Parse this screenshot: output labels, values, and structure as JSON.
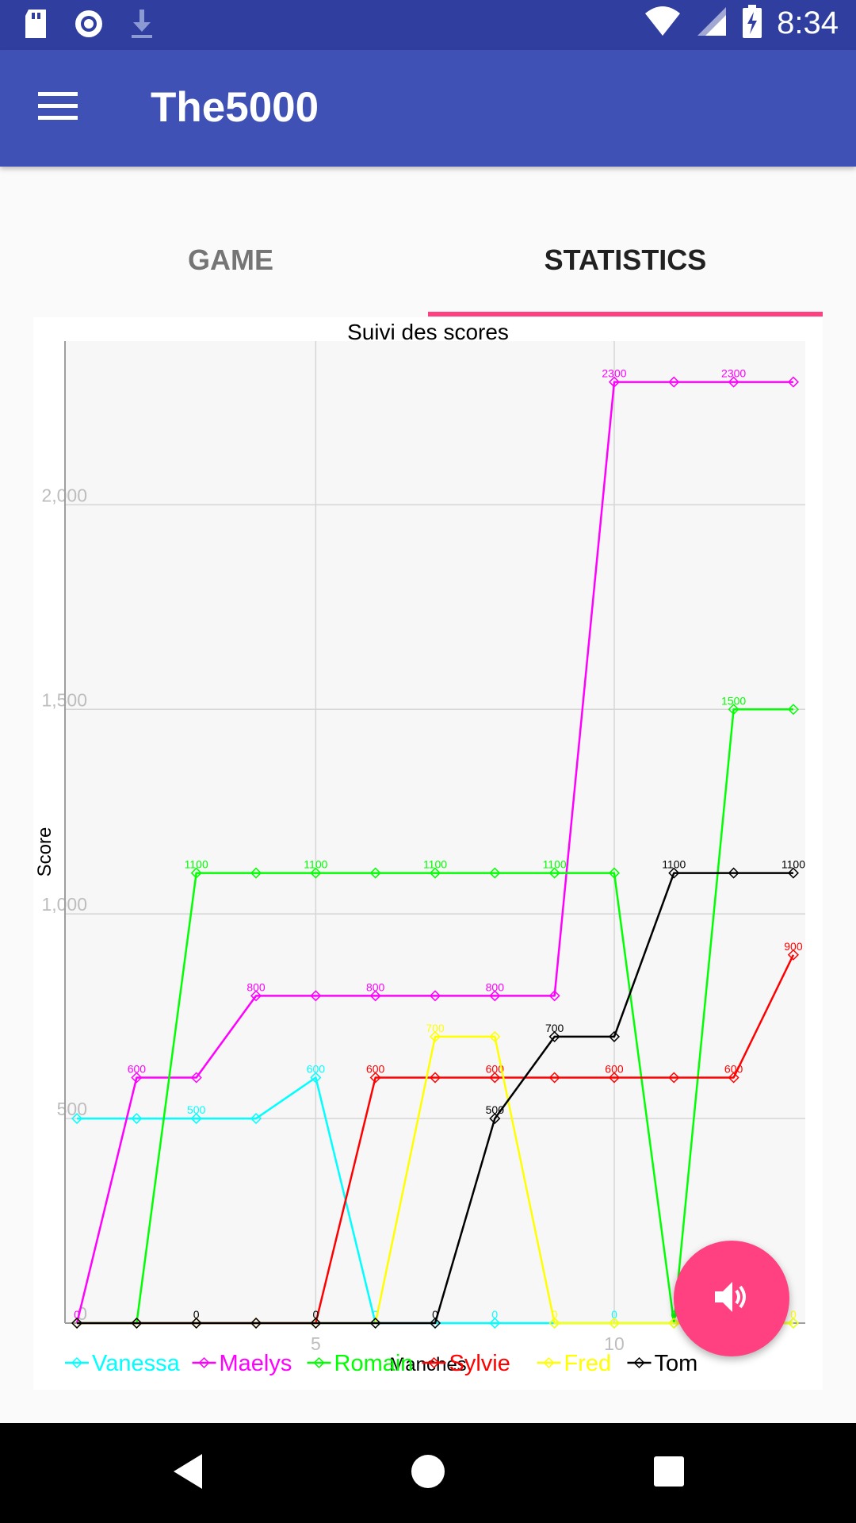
{
  "status_bar": {
    "time": "8:34"
  },
  "app_bar": {
    "title": "The5000"
  },
  "tabs": [
    {
      "label": "GAME",
      "selected": false
    },
    {
      "label": "STATISTICS",
      "selected": true
    }
  ],
  "colors": {
    "primary": "#3f51b5",
    "primary_dark": "#303f9f",
    "accent": "#ff4081"
  },
  "icons": {
    "status_left": [
      "sd-card-icon",
      "record-icon",
      "download-icon"
    ],
    "status_right": [
      "wifi-icon",
      "signal-icon",
      "battery-charging-icon"
    ],
    "fab": "speaker-icon",
    "nav": [
      "back-icon",
      "home-icon",
      "recents-icon"
    ]
  },
  "chart_data": {
    "type": "line",
    "title": "Suivi des scores",
    "xlabel": "Manches",
    "ylabel": "Score",
    "x": [
      1,
      2,
      3,
      4,
      5,
      6,
      7,
      8,
      9,
      10,
      11,
      12,
      13
    ],
    "xlim": [
      0.8,
      13.2
    ],
    "ylim": [
      0,
      2400
    ],
    "xticks": [
      "5",
      "10"
    ],
    "yticks": [
      "0",
      "500",
      "1,000",
      "1,500",
      "2,000"
    ],
    "legend_position": "bottom",
    "series": [
      {
        "name": "Vanessa",
        "color": "#00ffff",
        "values": [
          500,
          500,
          500,
          500,
          600,
          0,
          0,
          0,
          0,
          0,
          0,
          0,
          0
        ]
      },
      {
        "name": "Maelys",
        "color": "#ff00ff",
        "values": [
          0,
          600,
          600,
          800,
          800,
          800,
          800,
          800,
          800,
          2300,
          2300,
          2300,
          2300
        ]
      },
      {
        "name": "Romain",
        "color": "#00ff00",
        "values": [
          0,
          0,
          1100,
          1100,
          1100,
          1100,
          1100,
          1100,
          1100,
          1100,
          0,
          1500,
          1500
        ]
      },
      {
        "name": "Sylvie",
        "color": "#ff0000",
        "values": [
          0,
          0,
          0,
          0,
          0,
          600,
          600,
          600,
          600,
          600,
          600,
          600,
          900
        ]
      },
      {
        "name": "Fred",
        "color": "#ffff00",
        "values": [
          0,
          0,
          0,
          0,
          0,
          0,
          700,
          700,
          0,
          0,
          0,
          0,
          0
        ]
      },
      {
        "name": "Tom",
        "color": "#000000",
        "values": [
          0,
          0,
          0,
          0,
          0,
          0,
          0,
          500,
          700,
          700,
          1100,
          1100,
          1100
        ]
      }
    ],
    "point_labels": [
      {
        "series": "Vanessa",
        "at": [
          3,
          5,
          6,
          8,
          10
        ]
      },
      {
        "series": "Maelys",
        "at": [
          1,
          2,
          4,
          6,
          8,
          10,
          12
        ]
      },
      {
        "series": "Romain",
        "at": [
          3,
          5,
          7,
          9,
          11,
          12
        ]
      },
      {
        "series": "Sylvie",
        "at": [
          6,
          8,
          10,
          12,
          13
        ]
      },
      {
        "series": "Fred",
        "at": [
          7,
          9,
          13
        ]
      },
      {
        "series": "Tom",
        "at": [
          3,
          5,
          7,
          8,
          9,
          11,
          13
        ]
      }
    ]
  }
}
